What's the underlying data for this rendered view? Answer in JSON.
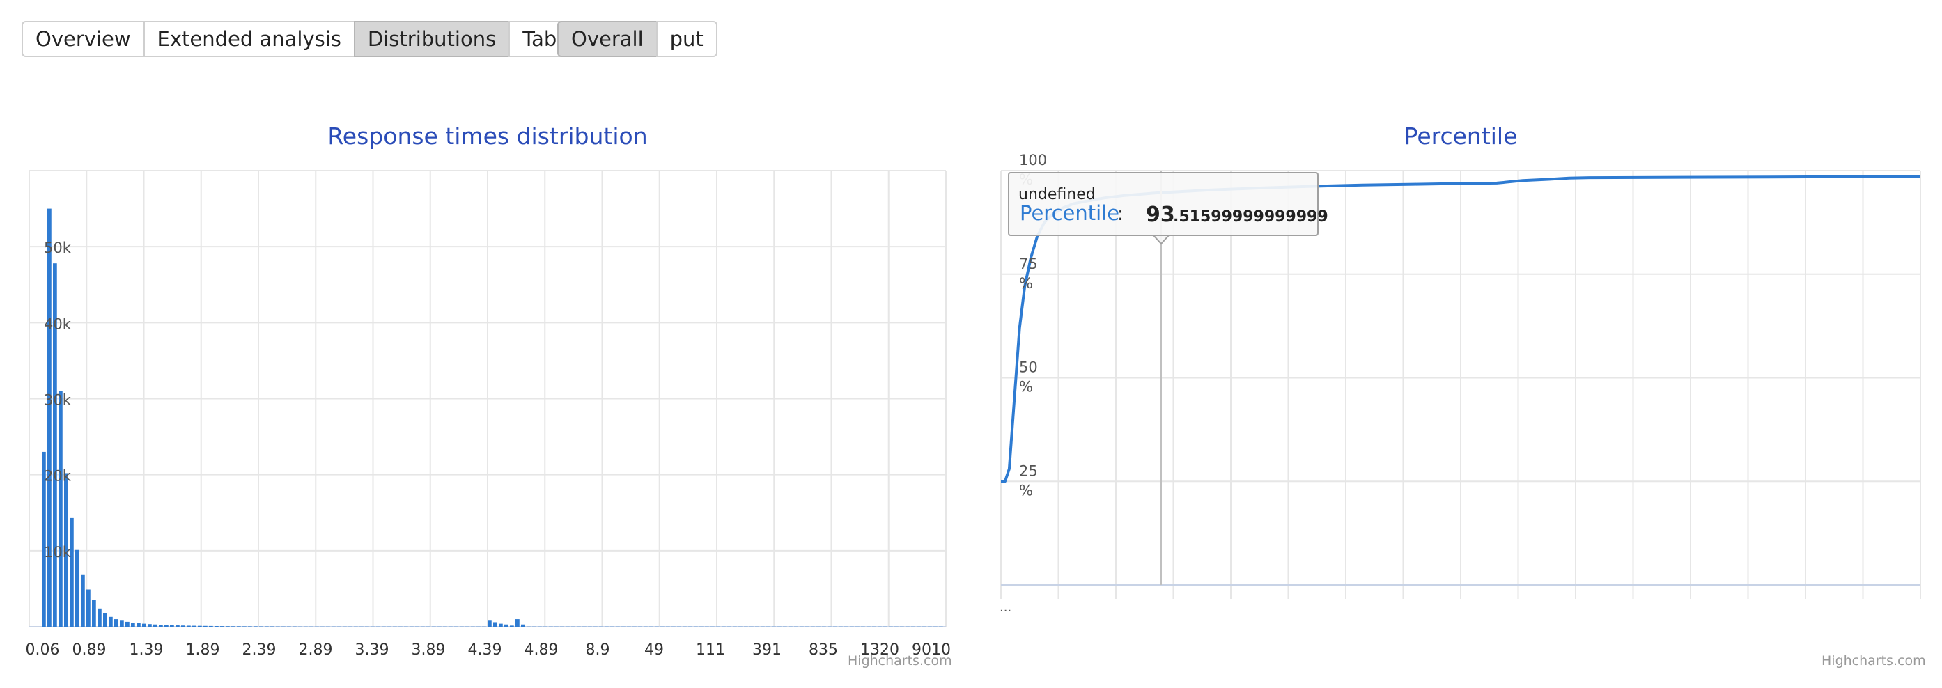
{
  "tabs": {
    "views": [
      "Overview",
      "Extended analysis",
      "Distributions",
      "Tables"
    ],
    "active_view": "Distributions",
    "cases": [
      "Overall",
      "put"
    ],
    "active_case": "Overall"
  },
  "credits": "Highcharts.com",
  "colors": {
    "series": "#2e7bd2",
    "title": "#2a4cb8",
    "grid": "#e6e6e6"
  },
  "chart_data": [
    {
      "type": "bar",
      "title": "Response times distribution",
      "xlabel": "",
      "ylabel": "",
      "ylim": [
        0,
        60000
      ],
      "y_ticks": [
        0,
        10000,
        20000,
        30000,
        40000,
        50000
      ],
      "y_tick_labels": [
        "",
        "10k",
        "20k",
        "30k",
        "40k",
        "50k"
      ],
      "x_tick_labels": [
        "0.06",
        "0.89",
        "1.39",
        "1.89",
        "2.39",
        "2.89",
        "3.39",
        "3.89",
        "4.39",
        "4.89",
        "8.9",
        "49",
        "111",
        "391",
        "835",
        "1320",
        "9010"
      ],
      "grid": true,
      "values": [
        23000,
        55000,
        47800,
        31000,
        20200,
        14300,
        10100,
        6800,
        4900,
        3500,
        2400,
        1800,
        1300,
        1000,
        800,
        650,
        550,
        480,
        400,
        350,
        300,
        260,
        230,
        200,
        180,
        160,
        140,
        130,
        120,
        110,
        100,
        90,
        80,
        70,
        60,
        60,
        50,
        50,
        50,
        40,
        40,
        40,
        30,
        30,
        30,
        30,
        20,
        20,
        20,
        20,
        20,
        20,
        20,
        20,
        20,
        20,
        20,
        20,
        20,
        20,
        20,
        20,
        20,
        20,
        20,
        20,
        20,
        20,
        20,
        20,
        20,
        20,
        20,
        20,
        20,
        20,
        20,
        20,
        20,
        20,
        800,
        600,
        400,
        300,
        150,
        1000,
        300,
        20,
        20,
        20,
        20,
        20,
        20,
        20,
        20,
        20,
        20,
        20,
        20,
        20,
        20,
        20,
        20,
        20,
        20,
        20,
        20,
        20,
        20,
        20,
        20,
        20,
        20,
        20,
        20,
        20,
        20,
        20,
        20,
        20,
        20,
        20,
        20,
        20,
        20,
        20,
        20,
        20,
        20,
        20,
        20,
        20,
        20,
        20,
        20,
        20,
        20,
        20,
        20,
        20,
        20,
        20,
        20,
        20,
        20,
        20,
        20,
        20,
        20,
        20,
        20,
        20,
        20,
        20,
        20,
        20,
        20,
        20,
        20,
        20,
        20,
        20
      ]
    },
    {
      "type": "line",
      "title": "Percentile",
      "series_name": "Percentile",
      "ylim": [
        0,
        100
      ],
      "y_ticks": [
        25,
        50,
        75,
        100
      ],
      "y_tick_unit": "%",
      "x_axis_label": "...",
      "grid": true,
      "tooltip": {
        "header": "undefined",
        "label": "Percentile",
        "separator": ":",
        "value_major": "93",
        "value_minor": ".51599999999999"
      },
      "points": [
        [
          0,
          25
        ],
        [
          4,
          25
        ],
        [
          8,
          28
        ],
        [
          13,
          45
        ],
        [
          18,
          62
        ],
        [
          23,
          72
        ],
        [
          29,
          79
        ],
        [
          35,
          84
        ],
        [
          42,
          87.5
        ],
        [
          50,
          89.5
        ],
        [
          60,
          91
        ],
        [
          70,
          92
        ],
        [
          84,
          92.7
        ],
        [
          100,
          93.4
        ],
        [
          120,
          94
        ],
        [
          150,
          94.6
        ],
        [
          200,
          95.3
        ],
        [
          250,
          95.8
        ],
        [
          300,
          96.2
        ],
        [
          350,
          96.5
        ],
        [
          400,
          96.7
        ],
        [
          450,
          96.9
        ],
        [
          480,
          97
        ],
        [
          505,
          97.6
        ],
        [
          530,
          97.9
        ],
        [
          550,
          98.2
        ],
        [
          570,
          98.3
        ],
        [
          800,
          98.5
        ],
        [
          890,
          98.5
        ]
      ]
    }
  ]
}
